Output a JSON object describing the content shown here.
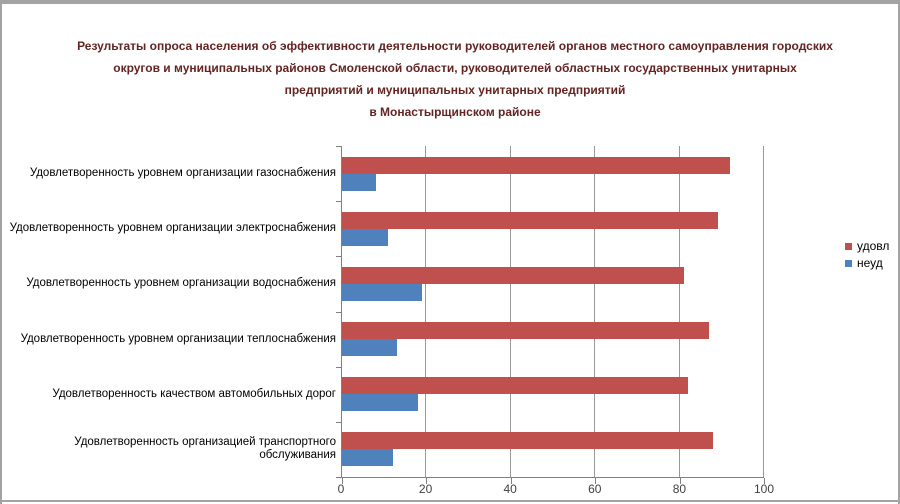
{
  "frame": {
    "background": "#ffffff",
    "border_color": "#a3a3a3"
  },
  "chart_data": {
    "type": "bar",
    "orientation": "horizontal",
    "title": "Результаты опроса населения об эффективности деятельности руководителей органов местного самоуправления городских округов и муниципальных районов Смоленской области, руководителей областных государственных унитарных предприятий и муниципальных унитарных предприятий в Монастырщинском районе",
    "title_lines": [
      "Результаты опроса населения об эффективности деятельности руководителей органов местного самоуправления городских",
      "округов и муниципальных районов Смоленской области, руководителей областных государственных унитарных",
      "предприятий и муниципальных унитарных предприятий",
      "в Монастырщинском районе"
    ],
    "title_color": "#632423",
    "categories": [
      "Удовлетворенность уровнем организации газоснабжения",
      "Удовлетворенность уровнем организации электроснабжения",
      "Удовлетворенность уровнем организации водоснабжения",
      "Удовлетворенность уровнем организации теплоснабжения",
      "Удовлетворенность качеством автомобильных дорог",
      "Удовлетворенность организацией транспортного обслуживания"
    ],
    "series": [
      {
        "name": "удовл",
        "color": "#c0504d",
        "values": [
          92,
          89,
          81,
          87,
          82,
          88
        ]
      },
      {
        "name": "неуд",
        "color": "#4f81bd",
        "values": [
          8,
          11,
          19,
          13,
          18,
          12
        ]
      }
    ],
    "xlim": [
      0,
      100
    ],
    "xticks": [
      0,
      20,
      40,
      60,
      80,
      100
    ],
    "grid": "vertical-major",
    "legend_position": "right",
    "axis_color": "#808080",
    "gridline_color": "#999999",
    "tick_label_color": "#404040"
  }
}
